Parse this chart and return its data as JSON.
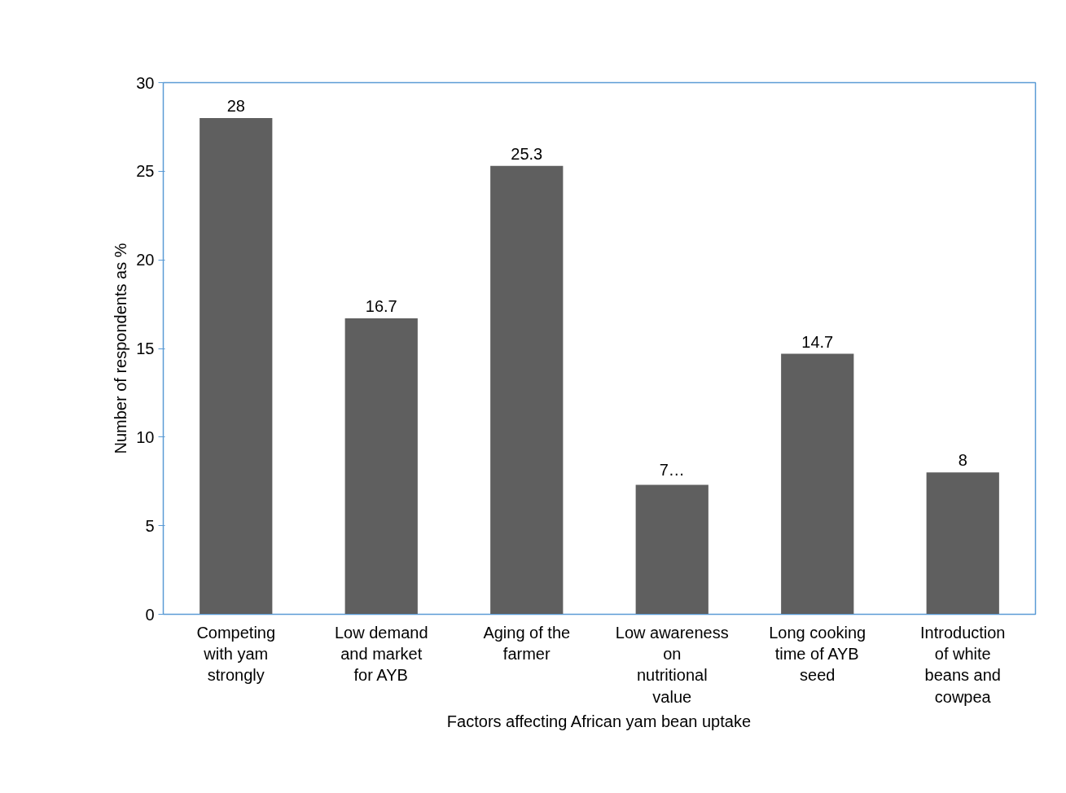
{
  "chart_data": {
    "type": "bar",
    "xlabel": "Factors affecting African yam bean uptake",
    "ylabel": "Number of respondents as %",
    "categories": [
      "Competing with yam strongly",
      "Low demand and market for AYB",
      "Aging of the farmer",
      "Low awareness on nutritional value",
      "Long cooking time of AYB seed",
      "Introduction of white beans and cowpea"
    ],
    "values": [
      28,
      16.7,
      25.3,
      7.3,
      14.7,
      8
    ],
    "value_labels": [
      "28",
      "16.7",
      "25.3",
      "7…",
      "14.7",
      "8"
    ],
    "color": "#5f5f5f",
    "ylim": [
      0,
      30
    ],
    "yticks": [
      0,
      5,
      10,
      15,
      20,
      25,
      30
    ],
    "grid": false
  }
}
